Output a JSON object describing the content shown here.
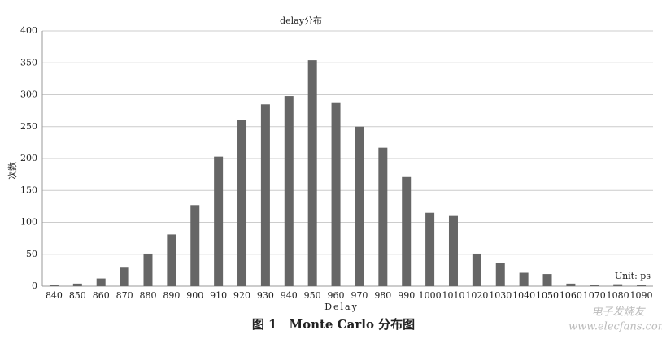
{
  "chart_data": {
    "type": "bar",
    "title": "delay分布",
    "x_label": "Delay",
    "y_label": "次数",
    "annotation": "Unit: ps",
    "categories": [
      "840",
      "850",
      "860",
      "870",
      "880",
      "890",
      "900",
      "910",
      "920",
      "930",
      "940",
      "950",
      "960",
      "970",
      "980",
      "990",
      "1000",
      "1010",
      "1020",
      "1030",
      "1040",
      "1050",
      "1060",
      "1070",
      "1080",
      "1090"
    ],
    "values": [
      2,
      4,
      12,
      29,
      51,
      81,
      127,
      203,
      261,
      285,
      298,
      354,
      287,
      250,
      217,
      171,
      115,
      110,
      51,
      36,
      21,
      19,
      4,
      2,
      3,
      2
    ],
    "color": "#666666",
    "ylim": [
      0,
      400
    ],
    "yticks": [
      0,
      50,
      100,
      150,
      200,
      250,
      300,
      350,
      400
    ],
    "grid": true
  },
  "caption": "图 1　Monte Carlo 分布图",
  "watermark": [
    "电子发烧友",
    "www.elecfans.com"
  ]
}
